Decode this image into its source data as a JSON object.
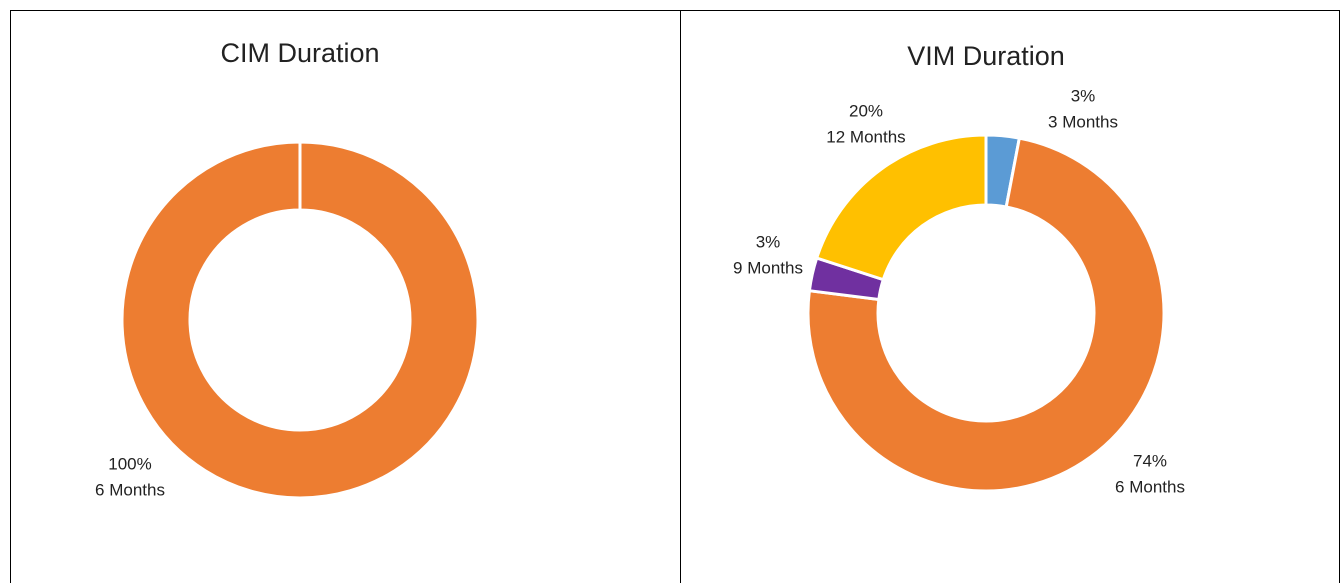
{
  "chart_data": [
    {
      "type": "donut",
      "title": "CIM Duration",
      "categories": [
        "6 Months"
      ],
      "values": [
        100
      ],
      "value_labels": [
        "100%"
      ],
      "colors": [
        "#ed7d31"
      ]
    },
    {
      "type": "donut",
      "title": "VIM Duration",
      "categories": [
        "3 Months",
        "6 Months",
        "9 Months",
        "12 Months"
      ],
      "values": [
        3,
        74,
        3,
        20
      ],
      "value_labels": [
        "3%",
        "74%",
        "3%",
        "20%"
      ],
      "colors": [
        "#5b9bd5",
        "#ed7d31",
        "#7030a0",
        "#ffc000"
      ]
    }
  ]
}
